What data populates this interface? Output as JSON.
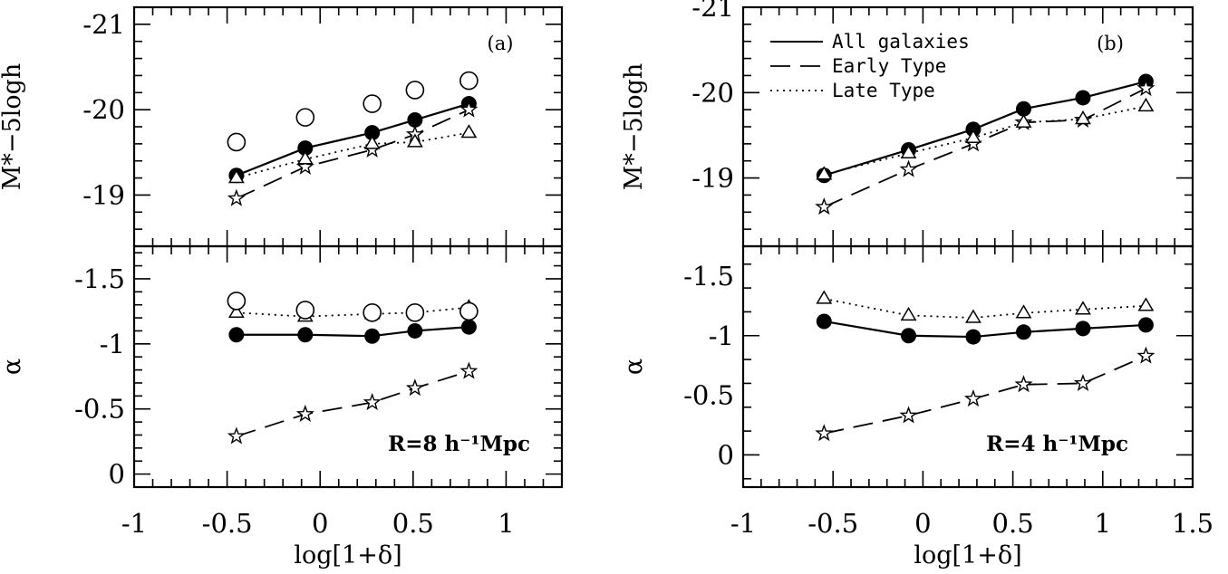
{
  "chart_data": [
    {
      "type": "line",
      "panel_label": "(a)",
      "annotation": "R=8 h⁻¹Mpc",
      "xlabel": "log[1+δ]",
      "xlim": [
        -1,
        1.3
      ],
      "x_ticks": [
        "-1",
        "-0.5",
        "0",
        "0.5",
        "1"
      ],
      "subplots": [
        {
          "name": "top",
          "ylabel": "M*−5logh",
          "ylim": [
            -18.4,
            -21.2
          ],
          "y_ticks": [
            "-19",
            "-20",
            "-21"
          ],
          "series": [
            {
              "marker": "filled-circle",
              "line": "solid",
              "x": [
                -0.45,
                -0.08,
                0.28,
                0.51,
                0.8
              ],
              "y": [
                -19.23,
                -19.55,
                -19.73,
                -19.88,
                -20.07
              ]
            },
            {
              "marker": "open-star",
              "line": "dashed",
              "x": [
                -0.45,
                -0.08,
                0.28,
                0.51,
                0.8
              ],
              "y": [
                -18.96,
                -19.33,
                -19.53,
                -19.71,
                -20.0
              ]
            },
            {
              "marker": "open-triangle",
              "line": "dotted",
              "x": [
                -0.45,
                -0.08,
                0.28,
                0.51,
                0.8
              ],
              "y": [
                -19.2,
                -19.42,
                -19.6,
                -19.62,
                -19.73
              ]
            },
            {
              "marker": "open-circle",
              "line": "none",
              "x": [
                -0.45,
                -0.08,
                0.28,
                0.51,
                0.8
              ],
              "y": [
                -19.62,
                -19.91,
                -20.07,
                -20.23,
                -20.34
              ]
            }
          ]
        },
        {
          "name": "bottom",
          "ylabel": "α",
          "ylim": [
            0.1,
            -1.75
          ],
          "y_ticks": [
            "0",
            "-0.5",
            "-1",
            "-1.5"
          ],
          "series": [
            {
              "marker": "filled-circle",
              "line": "solid",
              "x": [
                -0.45,
                -0.08,
                0.28,
                0.51,
                0.8
              ],
              "y": [
                -1.07,
                -1.07,
                -1.06,
                -1.1,
                -1.13
              ]
            },
            {
              "marker": "open-star",
              "line": "dashed",
              "x": [
                -0.45,
                -0.08,
                0.28,
                0.51,
                0.8
              ],
              "y": [
                -0.29,
                -0.46,
                -0.55,
                -0.66,
                -0.79
              ]
            },
            {
              "marker": "open-triangle",
              "line": "dotted",
              "x": [
                -0.45,
                -0.08,
                0.28,
                0.51,
                0.8
              ],
              "y": [
                -1.24,
                -1.21,
                -1.23,
                -1.24,
                -1.28
              ]
            },
            {
              "marker": "open-circle",
              "line": "none",
              "x": [
                -0.45,
                -0.08,
                0.28,
                0.51,
                0.8
              ],
              "y": [
                -1.33,
                -1.26,
                -1.24,
                -1.24,
                -1.25
              ]
            }
          ]
        }
      ]
    },
    {
      "type": "line",
      "panel_label": "(b)",
      "annotation": "R=4 h⁻¹Mpc",
      "xlabel": "log[1+δ]",
      "xlim": [
        -1,
        1.5
      ],
      "x_ticks": [
        "-1",
        "-0.5",
        "0",
        "0.5",
        "1",
        "1.5"
      ],
      "legend": {
        "placement": "top-left",
        "entries": [
          {
            "label": "All galaxies",
            "line": "solid"
          },
          {
            "label": "Early Type",
            "line": "dashed"
          },
          {
            "label": "Late Type",
            "line": "dotted"
          }
        ]
      },
      "subplots": [
        {
          "name": "top",
          "ylabel": "M*−5logh",
          "ylim": [
            -18.2,
            -21.0
          ],
          "y_ticks": [
            "-19",
            "-20",
            "-21"
          ],
          "series": [
            {
              "marker": "filled-circle",
              "line": "solid",
              "x": [
                -0.55,
                -0.08,
                0.28,
                0.56,
                0.89,
                1.24
              ],
              "y": [
                -19.03,
                -19.33,
                -19.57,
                -19.81,
                -19.94,
                -20.13
              ]
            },
            {
              "marker": "open-star",
              "line": "dashed",
              "x": [
                -0.55,
                -0.08,
                0.28,
                0.56,
                0.89,
                1.24
              ],
              "y": [
                -18.66,
                -19.1,
                -19.4,
                -19.65,
                -19.68,
                -20.05
              ]
            },
            {
              "marker": "open-triangle",
              "line": "dotted",
              "x": [
                -0.55,
                -0.08,
                0.28,
                0.56,
                0.89,
                1.24
              ],
              "y": [
                -19.04,
                -19.29,
                -19.47,
                -19.65,
                -19.69,
                -19.84
              ]
            }
          ]
        },
        {
          "name": "bottom",
          "ylabel": "α",
          "ylim": [
            0.27,
            -1.75
          ],
          "y_ticks": [
            "0",
            "-0.5",
            "-1",
            "-1.5"
          ],
          "series": [
            {
              "marker": "filled-circle",
              "line": "solid",
              "x": [
                -0.55,
                -0.08,
                0.28,
                0.56,
                0.89,
                1.24
              ],
              "y": [
                -1.12,
                -1.0,
                -0.99,
                -1.03,
                -1.06,
                -1.09
              ]
            },
            {
              "marker": "open-star",
              "line": "dashed",
              "x": [
                -0.55,
                -0.08,
                0.28,
                0.56,
                0.89,
                1.24
              ],
              "y": [
                -0.18,
                -0.33,
                -0.47,
                -0.59,
                -0.6,
                -0.83
              ]
            },
            {
              "marker": "open-triangle",
              "line": "dotted",
              "x": [
                -0.55,
                -0.08,
                0.28,
                0.56,
                0.89,
                1.24
              ],
              "y": [
                -1.31,
                -1.17,
                -1.15,
                -1.19,
                -1.22,
                -1.25
              ]
            }
          ]
        }
      ]
    }
  ]
}
